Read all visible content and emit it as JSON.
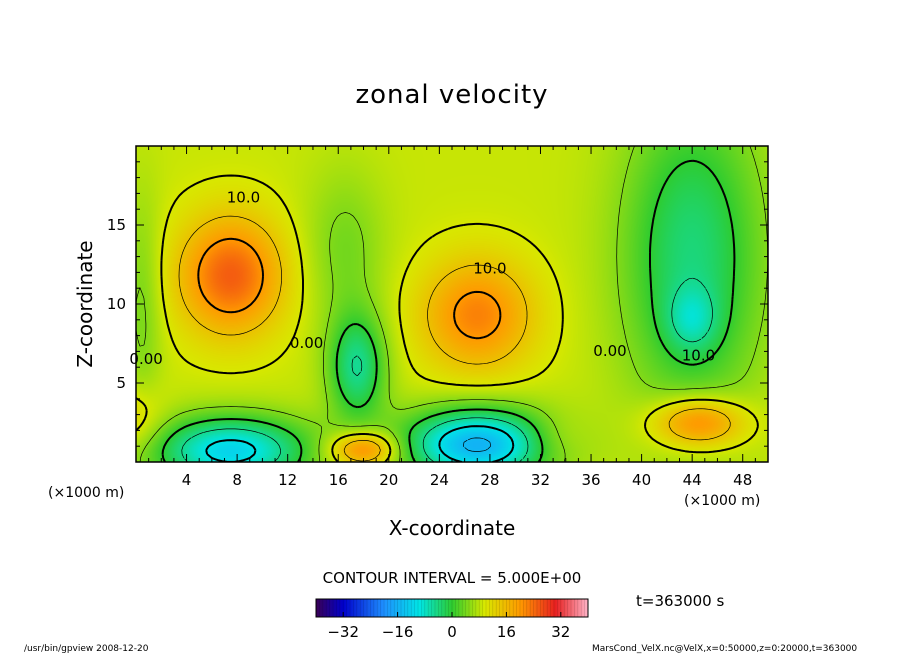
{
  "chart_data": {
    "type": "heatmap",
    "title": "zonal velocity",
    "xlabel": "X-coordinate",
    "ylabel": "Z-coordinate",
    "x_unit": "(×1000 m)",
    "x_unit_right": "(×1000 m)",
    "xlim": [
      0,
      50
    ],
    "ylim": [
      0,
      20
    ],
    "x_ticks": [
      "4",
      "8",
      "12",
      "16",
      "20",
      "24",
      "28",
      "32",
      "36",
      "40",
      "44",
      "48"
    ],
    "y_ticks": [
      "5",
      "10",
      "15"
    ],
    "contour_interval": "CONTOUR INTERVAL = 5.000E+00",
    "contour_labels": [
      {
        "text": "10.0",
        "x": 8.5,
        "z": 16.7
      },
      {
        "text": "10.0",
        "x": 28.0,
        "z": 12.2
      },
      {
        "text": "10.0",
        "x": 44.5,
        "z": 6.7
      },
      {
        "text": "0.00",
        "x": 0.8,
        "z": 6.5
      },
      {
        "text": "0.00",
        "x": 13.5,
        "z": 7.5
      },
      {
        "text": "0.00",
        "x": 37.5,
        "z": 7.0
      }
    ],
    "field_features": [
      {
        "x": 7.5,
        "z": 11.8,
        "value": 16
      },
      {
        "x": 27.0,
        "z": 9.3,
        "value": 14
      },
      {
        "x": 44.5,
        "z": 2.5,
        "value": 16
      },
      {
        "x": 18.0,
        "z": 0.8,
        "value": 16
      },
      {
        "x": 7.5,
        "z": 0.8,
        "value": -15
      },
      {
        "x": 27.0,
        "z": 1.3,
        "value": -18
      },
      {
        "x": 17.5,
        "z": 6.0,
        "value": -8
      },
      {
        "x": 44.0,
        "z": 9.0,
        "value": -12
      },
      {
        "x": 44.0,
        "z": 15.0,
        "value": -9
      },
      {
        "x": 0.0,
        "z": 2.5,
        "value": 5
      },
      {
        "x": 33.0,
        "z": 1.5,
        "value": 5
      }
    ],
    "colorbar": {
      "ticks": [
        "−32",
        "−16",
        "0",
        "16",
        "32"
      ],
      "tick_values": [
        -32,
        -16,
        0,
        16,
        32
      ],
      "range": [
        -40,
        40
      ]
    },
    "time_label": "t=363000 s",
    "footer_left": "/usr/bin/gpview   2008-12-20",
    "footer_right": "MarsCond_VelX.nc@VelX,x=0:50000,z=0:20000,t=363000"
  },
  "colors": {
    "axis": "#000000",
    "background": "#ffffff"
  }
}
